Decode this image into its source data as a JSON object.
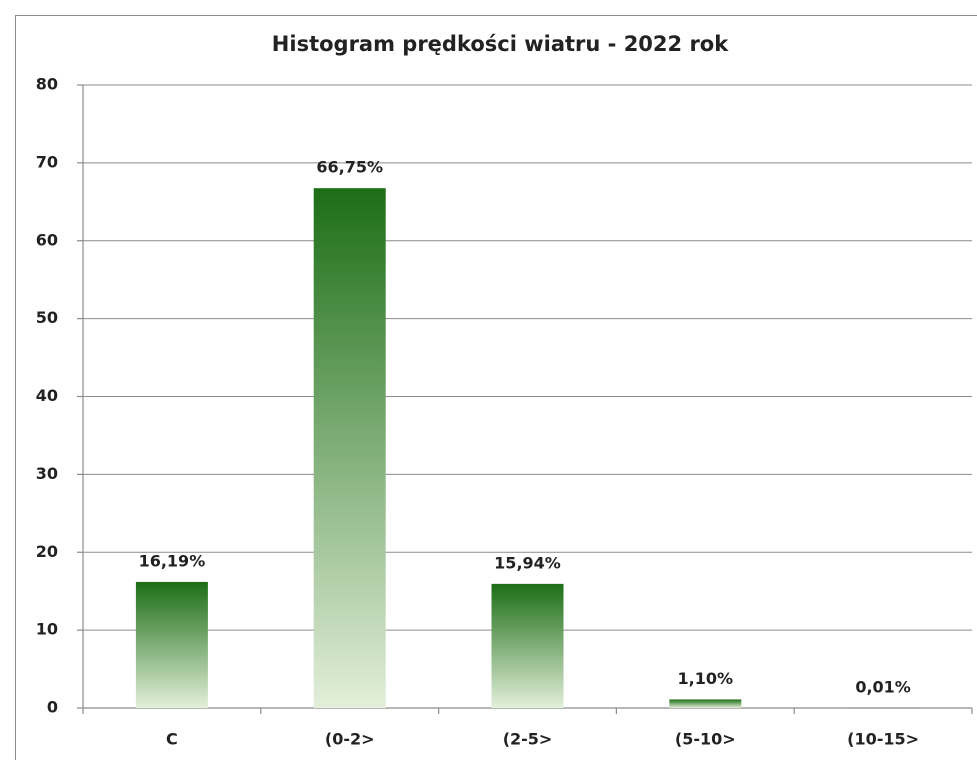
{
  "chart_data": {
    "type": "bar",
    "title": "Histogram prędkości wiatru - 2022 rok",
    "categories": [
      "C",
      "(0-2>",
      "(2-5>",
      "(5-10>",
      "(10-15>"
    ],
    "values": [
      16.19,
      66.75,
      15.94,
      1.1,
      0.01
    ],
    "value_labels": [
      "16,19%",
      "66,75%",
      "15,94%",
      "1,10%",
      "0,01%"
    ],
    "gradient": [
      "#1c6e16",
      "#e3efda"
    ],
    "ylim": [
      0,
      80
    ],
    "yticks": [
      0,
      10,
      20,
      30,
      40,
      50,
      60,
      70,
      80
    ],
    "grid": true
  }
}
